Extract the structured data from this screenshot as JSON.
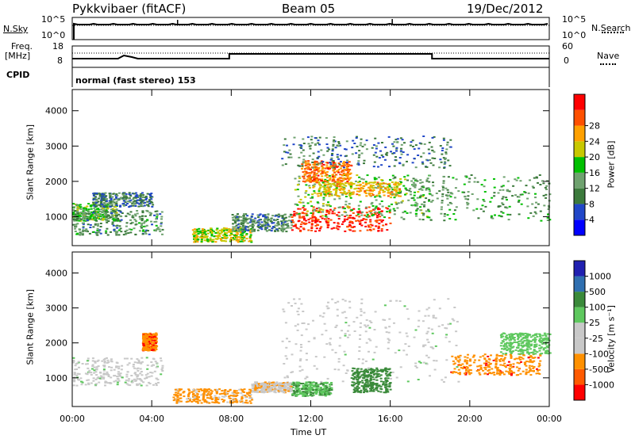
{
  "header": {
    "station": "Pykkvibaer (fitACF)",
    "beam": "Beam 05",
    "date": "19/Dec/2012"
  },
  "panels": {
    "nsky": {
      "label": "N.Sky",
      "top_tick": "10^5",
      "bottom_tick": "10^0",
      "right_label": "N.Search",
      "right_top": "10^5",
      "right_bottom": "10^0"
    },
    "freq": {
      "label_top": "Freq.",
      "label_unit": "[MHz]",
      "left_top": "18",
      "left_bottom": "8",
      "right_label": "Nave",
      "right_top": "60",
      "right_bottom": "0"
    },
    "cpid": {
      "label": "CPID",
      "mode": "normal (fast stereo) 153"
    }
  },
  "colors": {
    "power": [
      "#0000ff",
      "#2147c8",
      "#3c7a3c",
      "#6fa26f",
      "#00c000",
      "#c8c800",
      "#ffa000",
      "#ff5000",
      "#ff0000"
    ],
    "velocity": [
      "#2020b0",
      "#2f6fb0",
      "#3a8a3a",
      "#5ec85e",
      "#c8c8c8",
      "#c8c8c8",
      "#ff9000",
      "#ff5a00",
      "#ff0000"
    ]
  },
  "chart_data": [
    {
      "type": "heatmap",
      "title": "",
      "ylabel": "Slant Range [km]",
      "xlabel": "",
      "ylim": [
        180,
        4600
      ],
      "yticks": [
        "1000",
        "2000",
        "3000",
        "4000"
      ],
      "xticks": [
        "00:00",
        "04:00",
        "08:00",
        "12:00",
        "16:00",
        "20:00",
        "00:00"
      ],
      "colorbar": {
        "label": "Power [dB]",
        "ticks": [
          "4",
          "8",
          "12",
          "16",
          "20",
          "24",
          "28"
        ],
        "range": [
          0,
          30
        ]
      },
      "regions": [
        {
          "t": [
            0.0,
            2.2
          ],
          "range": [
            900,
            1400
          ],
          "level": 14
        },
        {
          "t": [
            0.0,
            4.5
          ],
          "range": [
            500,
            1200
          ],
          "level": 10
        },
        {
          "t": [
            1.0,
            4.0
          ],
          "range": [
            1300,
            1700
          ],
          "level": 8
        },
        {
          "t": [
            6.0,
            9.0
          ],
          "range": [
            300,
            700
          ],
          "level": 18
        },
        {
          "t": [
            8.0,
            11.0
          ],
          "range": [
            600,
            1100
          ],
          "level": 9
        },
        {
          "t": [
            11.0,
            16.0
          ],
          "range": [
            600,
            1300
          ],
          "level": 27
        },
        {
          "t": [
            11.0,
            18.0
          ],
          "range": [
            1000,
            2200
          ],
          "level": 14
        },
        {
          "t": [
            11.5,
            14.0
          ],
          "range": [
            2000,
            2600
          ],
          "level": 24
        },
        {
          "t": [
            12.0,
            16.5
          ],
          "range": [
            1600,
            2000
          ],
          "level": 20
        },
        {
          "t": [
            10.5,
            19.0
          ],
          "range": [
            2400,
            3300
          ],
          "level": 8
        },
        {
          "t": [
            16.0,
            24.0
          ],
          "range": [
            900,
            2200
          ],
          "level": 11
        }
      ]
    },
    {
      "type": "heatmap",
      "title": "",
      "ylabel": "Slant Range [km]",
      "xlabel": "Time UT",
      "ylim": [
        180,
        4600
      ],
      "yticks": [
        "1000",
        "2000",
        "3000",
        "4000"
      ],
      "xticks": [
        "00:00",
        "04:00",
        "08:00",
        "12:00",
        "16:00",
        "20:00",
        "00:00"
      ],
      "colorbar": {
        "label": "Velocity [m s-1]",
        "ticks": [
          "1000",
          "500",
          "100",
          "25",
          "-25",
          "-100",
          "-500",
          "-1000"
        ],
        "range": [
          -1200,
          1200
        ]
      },
      "regions": [
        {
          "t": [
            0.0,
            4.5
          ],
          "range": [
            800,
            1600
          ],
          "velocity": 0
        },
        {
          "t": [
            3.5,
            4.2
          ],
          "range": [
            1800,
            2300
          ],
          "velocity": -400
        },
        {
          "t": [
            5.0,
            9.0
          ],
          "range": [
            300,
            700
          ],
          "velocity": -150
        },
        {
          "t": [
            9.0,
            11.0
          ],
          "range": [
            600,
            900
          ],
          "velocity": -80
        },
        {
          "t": [
            10.5,
            19.5
          ],
          "range": [
            900,
            3300
          ],
          "velocity": 0
        },
        {
          "t": [
            11.0,
            13.0
          ],
          "range": [
            500,
            900
          ],
          "velocity": 90
        },
        {
          "t": [
            14.0,
            16.0
          ],
          "range": [
            600,
            1300
          ],
          "velocity": 300
        },
        {
          "t": [
            19.0,
            23.5
          ],
          "range": [
            1100,
            1700
          ],
          "velocity": -350
        },
        {
          "t": [
            21.5,
            24.0
          ],
          "range": [
            1700,
            2300
          ],
          "velocity": 60
        }
      ]
    }
  ],
  "axis": {
    "time_label": "Time UT",
    "ylabel": "Slant Range [km]",
    "power_label": "Power",
    "power_unit": "[dB]",
    "vel_label": "Velocity",
    "vel_unit": "[m s⁻¹]"
  }
}
